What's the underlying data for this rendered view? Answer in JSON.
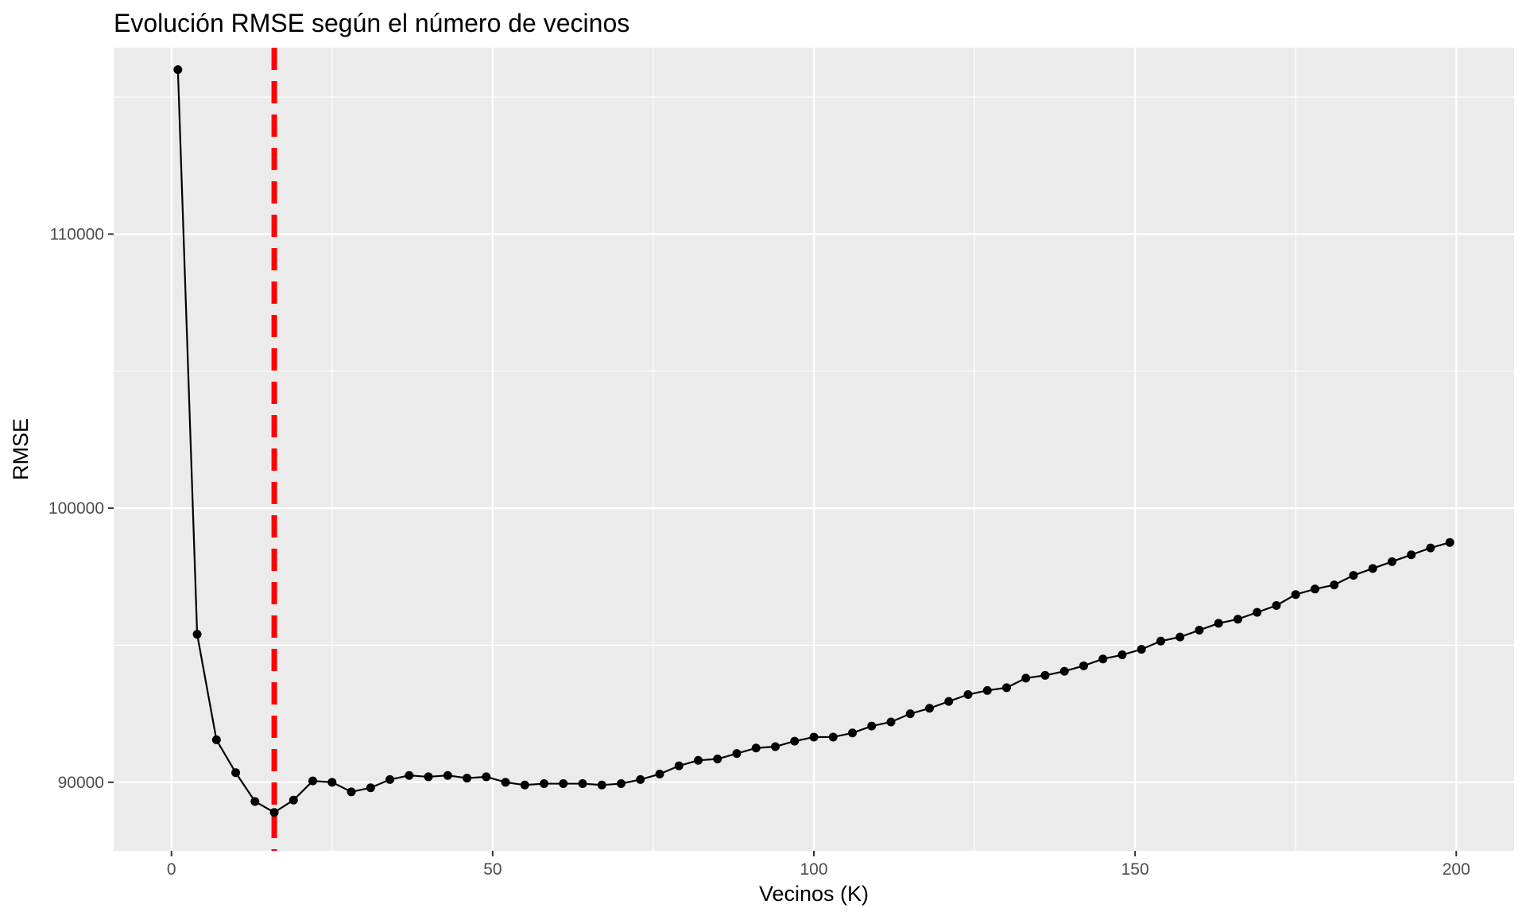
{
  "chart_data": {
    "type": "line",
    "title": "Evolución RMSE según el número de vecinos",
    "xlabel": "Vecinos (K)",
    "ylabel": "RMSE",
    "xlim": [
      -9,
      209
    ],
    "ylim": [
      87500,
      116800
    ],
    "x_ticks": [
      0,
      50,
      100,
      150,
      200
    ],
    "x_tick_labels": [
      "0",
      "50",
      "100",
      "150",
      "200"
    ],
    "y_ticks": [
      90000,
      100000,
      110000
    ],
    "y_tick_labels": [
      "90000",
      "100000",
      "110000"
    ],
    "x_minor_ticks": [
      25,
      75,
      125,
      175
    ],
    "y_minor_ticks": [
      95000,
      105000,
      115000
    ],
    "grid": true,
    "vline": {
      "x": 16,
      "color": "#ff0000",
      "style": "dashed"
    },
    "series": [
      {
        "color": "#000000",
        "x": [
          1,
          4,
          7,
          10,
          13,
          16,
          19,
          22,
          25,
          28,
          31,
          34,
          37,
          40,
          43,
          46,
          49,
          52,
          55,
          58,
          61,
          64,
          67,
          70,
          73,
          76,
          79,
          82,
          85,
          88,
          91,
          94,
          97,
          100,
          103,
          106,
          109,
          112,
          115,
          118,
          121,
          124,
          127,
          130,
          133,
          136,
          139,
          142,
          145,
          148,
          151,
          154,
          157,
          160,
          163,
          166,
          169,
          172,
          175,
          178,
          181,
          184,
          187,
          190,
          193,
          196,
          199
        ],
        "y": [
          116000,
          95400,
          91550,
          90350,
          89300,
          88900,
          89350,
          90050,
          90000,
          89650,
          89800,
          90100,
          90250,
          90200,
          90250,
          90150,
          90200,
          90000,
          89900,
          89950,
          89950,
          89950,
          89900,
          89950,
          90100,
          90300,
          90600,
          90800,
          90850,
          91050,
          91250,
          91300,
          91500,
          91650,
          91650,
          91800,
          92050,
          92200,
          92500,
          92700,
          92950,
          93200,
          93350,
          93450,
          93800,
          93900,
          94050,
          94250,
          94500,
          94650,
          94850,
          95150,
          95300,
          95550,
          95800,
          95950,
          96200,
          96450,
          96850,
          97050,
          97200,
          97550,
          97800,
          98050,
          98300,
          98550,
          98750
        ]
      }
    ],
    "colors": {
      "panel": "#ebebeb",
      "grid": "#ffffff",
      "line": "#000000",
      "vline": "#ff0000"
    }
  }
}
